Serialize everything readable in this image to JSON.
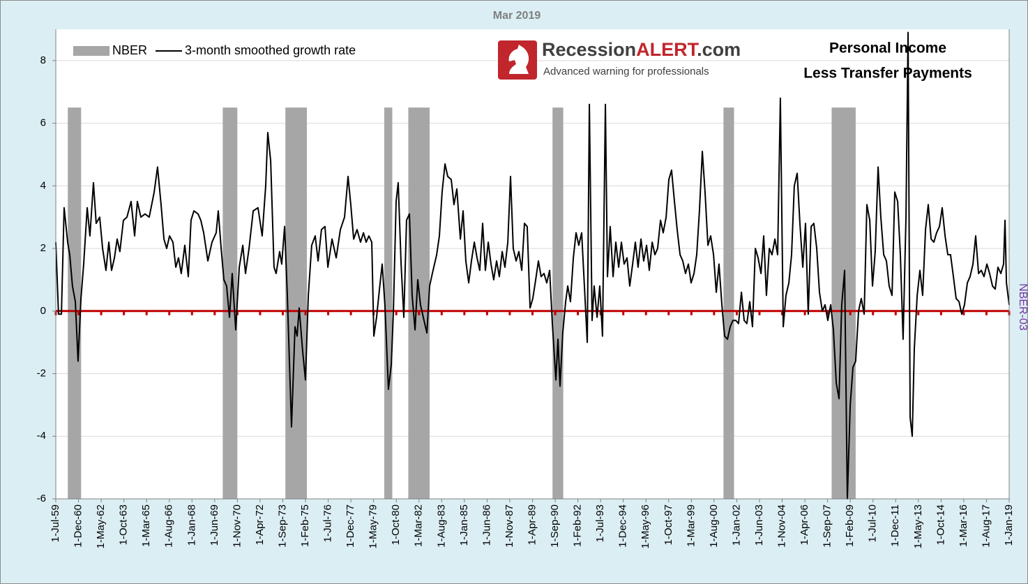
{
  "chart_data": {
    "type": "line",
    "title": "Mar 2019",
    "annotation": [
      "Personal Income",
      "Less Transfer Payments"
    ],
    "logo": {
      "name_parts": [
        "Recession",
        "ALERT",
        ".com"
      ],
      "tagline": "Advanced warning for professionals"
    },
    "y2_label": "NBER-03",
    "legend": "upper left",
    "grid": true,
    "xlim": [
      1959.5,
      2019.0
    ],
    "ylim": [
      -6,
      9
    ],
    "yticks": [
      -6,
      -4,
      -2,
      0,
      2,
      4,
      6,
      8
    ],
    "xticks": [
      {
        "value": 1959.5,
        "label": "1-Jul-59"
      },
      {
        "value": 1960.917,
        "label": "1-Dec-60"
      },
      {
        "value": 1962.333,
        "label": "1-May-62"
      },
      {
        "value": 1963.75,
        "label": "1-Oct-63"
      },
      {
        "value": 1965.167,
        "label": "1-Mar-65"
      },
      {
        "value": 1966.583,
        "label": "1-Aug-66"
      },
      {
        "value": 1968.0,
        "label": "1-Jan-68"
      },
      {
        "value": 1969.417,
        "label": "1-Jun-69"
      },
      {
        "value": 1970.833,
        "label": "1-Nov-70"
      },
      {
        "value": 1972.25,
        "label": "1-Apr-72"
      },
      {
        "value": 1973.667,
        "label": "1-Sep-73"
      },
      {
        "value": 1975.083,
        "label": "1-Feb-75"
      },
      {
        "value": 1976.5,
        "label": "1-Jul-76"
      },
      {
        "value": 1977.917,
        "label": "1-Dec-77"
      },
      {
        "value": 1979.333,
        "label": "1-May-79"
      },
      {
        "value": 1980.75,
        "label": "1-Oct-80"
      },
      {
        "value": 1982.167,
        "label": "1-Mar-82"
      },
      {
        "value": 1983.583,
        "label": "1-Aug-83"
      },
      {
        "value": 1985.0,
        "label": "1-Jan-85"
      },
      {
        "value": 1986.417,
        "label": "1-Jun-86"
      },
      {
        "value": 1987.833,
        "label": "1-Nov-87"
      },
      {
        "value": 1989.25,
        "label": "1-Apr-89"
      },
      {
        "value": 1990.667,
        "label": "1-Sep-90"
      },
      {
        "value": 1992.083,
        "label": "1-Feb-92"
      },
      {
        "value": 1993.5,
        "label": "1-Jul-93"
      },
      {
        "value": 1994.917,
        "label": "1-Dec-94"
      },
      {
        "value": 1996.333,
        "label": "1-May-96"
      },
      {
        "value": 1997.75,
        "label": "1-Oct-97"
      },
      {
        "value": 1999.167,
        "label": "1-Mar-99"
      },
      {
        "value": 2000.583,
        "label": "1-Aug-00"
      },
      {
        "value": 2002.0,
        "label": "1-Jan-02"
      },
      {
        "value": 2003.417,
        "label": "1-Jun-03"
      },
      {
        "value": 2004.833,
        "label": "1-Nov-04"
      },
      {
        "value": 2006.25,
        "label": "1-Apr-06"
      },
      {
        "value": 2007.667,
        "label": "1-Sep-07"
      },
      {
        "value": 2009.083,
        "label": "1-Feb-09"
      },
      {
        "value": 2010.5,
        "label": "1-Jul-10"
      },
      {
        "value": 2011.917,
        "label": "1-Dec-11"
      },
      {
        "value": 2013.333,
        "label": "1-May-13"
      },
      {
        "value": 2014.75,
        "label": "1-Oct-14"
      },
      {
        "value": 2016.167,
        "label": "1-Mar-16"
      },
      {
        "value": 2017.583,
        "label": "1-Aug-17"
      },
      {
        "value": 2019.0,
        "label": "1-Jan-19"
      }
    ],
    "reference_line": {
      "value": 0,
      "color": "#c00000"
    },
    "series": [
      {
        "name": "NBER",
        "type": "band",
        "color": "#a6a6a6",
        "x_start": [
          1960.25,
          1969.92,
          1973.83,
          1980.0,
          1981.5,
          1990.5,
          2001.17,
          2007.92
        ],
        "x_end": [
          1961.08,
          1970.83,
          1975.17,
          1980.5,
          1982.83,
          1991.17,
          2001.83,
          2009.42
        ],
        "values": [
          6.5,
          6.5,
          6.5,
          6.5,
          6.5,
          6.5,
          6.5,
          6.5
        ]
      },
      {
        "name": "3-month smoothed growth rate",
        "type": "line",
        "color": "#000000",
        "x": [
          1959.5,
          1959.67,
          1959.85,
          1960.02,
          1960.24,
          1960.37,
          1960.54,
          1960.72,
          1960.89,
          1961.07,
          1961.24,
          1961.46,
          1961.63,
          1961.85,
          1962.02,
          1962.24,
          1962.42,
          1962.63,
          1962.81,
          1962.98,
          1963.16,
          1963.33,
          1963.5,
          1963.72,
          1963.94,
          1964.2,
          1964.42,
          1964.59,
          1964.81,
          1965.07,
          1965.33,
          1965.64,
          1965.85,
          1966.07,
          1966.25,
          1966.42,
          1966.6,
          1966.81,
          1966.99,
          1967.16,
          1967.33,
          1967.55,
          1967.77,
          1967.94,
          1968.12,
          1968.38,
          1968.55,
          1968.73,
          1968.99,
          1969.25,
          1969.51,
          1969.64,
          1969.82,
          1969.99,
          1970.16,
          1970.34,
          1970.51,
          1970.73,
          1970.95,
          1971.17,
          1971.34,
          1971.56,
          1971.82,
          1972.12,
          1972.38,
          1972.6,
          1972.73,
          1972.91,
          1973.12,
          1973.25,
          1973.47,
          1973.6,
          1973.78,
          1973.95,
          1974.21,
          1974.43,
          1974.56,
          1974.69,
          1974.91,
          1975.08,
          1975.26,
          1975.47,
          1975.69,
          1975.87,
          1976.08,
          1976.3,
          1976.48,
          1976.74,
          1977.0,
          1977.26,
          1977.52,
          1977.74,
          1977.91,
          1978.09,
          1978.3,
          1978.52,
          1978.7,
          1978.87,
          1979.04,
          1979.22,
          1979.35,
          1979.52,
          1979.7,
          1979.87,
          1980.04,
          1980.26,
          1980.44,
          1980.57,
          1980.74,
          1980.87,
          1981.05,
          1981.22,
          1981.39,
          1981.57,
          1981.74,
          1981.92,
          1982.09,
          1982.26,
          1982.48,
          1982.66,
          1982.83,
          1983.0,
          1983.27,
          1983.44,
          1983.61,
          1983.79,
          1983.96,
          1984.18,
          1984.35,
          1984.53,
          1984.75,
          1984.92,
          1985.09,
          1985.27,
          1985.44,
          1985.62,
          1985.79,
          1985.96,
          1986.14,
          1986.31,
          1986.49,
          1986.66,
          1986.83,
          1987.01,
          1987.18,
          1987.36,
          1987.53,
          1987.71,
          1987.88,
          1988.05,
          1988.23,
          1988.4,
          1988.58,
          1988.75,
          1988.92,
          1989.1,
          1989.27,
          1989.45,
          1989.62,
          1989.79,
          1989.97,
          1990.14,
          1990.32,
          1990.49,
          1990.71,
          1990.84,
          1990.97,
          1991.14,
          1991.32,
          1991.45,
          1991.62,
          1991.8,
          1991.97,
          1992.14,
          1992.32,
          1992.49,
          1992.67,
          1992.8,
          1992.97,
          1993.1,
          1993.28,
          1993.45,
          1993.62,
          1993.8,
          1993.93,
          1994.1,
          1994.28,
          1994.45,
          1994.63,
          1994.8,
          1994.97,
          1995.15,
          1995.32,
          1995.5,
          1995.67,
          1995.84,
          1996.02,
          1996.19,
          1996.37,
          1996.54,
          1996.72,
          1996.89,
          1997.06,
          1997.24,
          1997.41,
          1997.59,
          1997.76,
          1997.93,
          1998.11,
          1998.28,
          1998.46,
          1998.63,
          1998.8,
          1998.98,
          1999.15,
          1999.33,
          1999.5,
          1999.67,
          1999.85,
          2000.02,
          2000.2,
          2000.37,
          2000.55,
          2000.72,
          2000.89,
          2001.07,
          2001.24,
          2001.42,
          2001.59,
          2001.76,
          2001.94,
          2002.11,
          2002.29,
          2002.46,
          2002.63,
          2002.81,
          2002.98,
          2003.16,
          2003.33,
          2003.51,
          2003.68,
          2003.85,
          2004.03,
          2004.2,
          2004.38,
          2004.55,
          2004.72,
          2004.9,
          2005.07,
          2005.25,
          2005.42,
          2005.59,
          2005.77,
          2005.94,
          2006.12,
          2006.29,
          2006.46,
          2006.64,
          2006.81,
          2006.99,
          2007.16,
          2007.34,
          2007.51,
          2007.68,
          2007.86,
          2008.03,
          2008.21,
          2008.38,
          2008.55,
          2008.73,
          2008.9,
          2009.08,
          2009.25,
          2009.42,
          2009.6,
          2009.77,
          2009.95,
          2010.12,
          2010.3,
          2010.47,
          2010.64,
          2010.82,
          2010.99,
          2011.17,
          2011.34,
          2011.51,
          2011.69,
          2011.86,
          2012.04,
          2012.21,
          2012.38,
          2012.56,
          2012.69,
          2012.82,
          2012.95,
          2013.08,
          2013.26,
          2013.43,
          2013.6,
          2013.78,
          2013.95,
          2014.13,
          2014.3,
          2014.47,
          2014.65,
          2014.82,
          2015.0,
          2015.17,
          2015.34,
          2015.52,
          2015.69,
          2015.87,
          2016.04,
          2016.21,
          2016.39,
          2016.56,
          2016.74,
          2016.91,
          2017.09,
          2017.26,
          2017.43,
          2017.61,
          2017.78,
          2017.96,
          2018.13,
          2018.3,
          2018.48,
          2018.65,
          2018.74,
          2018.83,
          2019.0
        ],
        "values": [
          2.2,
          -0.1,
          -0.1,
          3.3,
          2.2,
          1.8,
          0.8,
          0.3,
          -1.6,
          0.4,
          1.5,
          3.3,
          2.4,
          4.1,
          2.8,
          3.0,
          2.0,
          1.3,
          2.2,
          1.3,
          1.7,
          2.3,
          1.9,
          2.9,
          3.0,
          3.5,
          2.4,
          3.5,
          3.0,
          3.1,
          3.0,
          3.8,
          4.6,
          3.4,
          2.3,
          2.0,
          2.4,
          2.2,
          1.4,
          1.7,
          1.2,
          2.1,
          1.1,
          2.9,
          3.2,
          3.1,
          2.9,
          2.5,
          1.6,
          2.2,
          2.5,
          3.2,
          2.0,
          1.0,
          0.8,
          -0.2,
          1.2,
          -0.6,
          1.4,
          2.1,
          1.2,
          2.0,
          3.2,
          3.3,
          2.4,
          4.0,
          5.7,
          4.8,
          1.4,
          1.2,
          1.9,
          1.5,
          2.7,
          0.5,
          -3.7,
          -0.5,
          -0.8,
          0.1,
          -1.3,
          -2.2,
          0.5,
          2.1,
          2.4,
          1.6,
          2.6,
          2.7,
          1.4,
          2.3,
          1.7,
          2.6,
          3.0,
          4.3,
          3.4,
          2.3,
          2.6,
          2.2,
          2.5,
          2.2,
          2.4,
          2.2,
          -0.8,
          -0.2,
          0.7,
          1.5,
          0.2,
          -2.5,
          -1.7,
          0.0,
          3.5,
          4.1,
          1.5,
          -0.2,
          2.9,
          3.1,
          0.5,
          -0.6,
          1.0,
          0.2,
          -0.3,
          -0.7,
          0.8,
          1.2,
          1.8,
          2.4,
          3.8,
          4.7,
          4.3,
          4.2,
          3.4,
          3.9,
          2.3,
          3.2,
          1.6,
          0.9,
          1.6,
          2.2,
          1.7,
          1.3,
          2.8,
          1.3,
          2.2,
          1.5,
          1.0,
          1.6,
          1.1,
          1.9,
          1.4,
          2.2,
          4.3,
          2.0,
          1.6,
          1.9,
          1.3,
          2.8,
          2.7,
          0.1,
          0.4,
          1.0,
          1.6,
          1.1,
          1.2,
          0.9,
          1.3,
          -0.4,
          -2.2,
          -0.9,
          -2.4,
          -0.7,
          0.3,
          0.8,
          0.3,
          1.7,
          2.5,
          2.1,
          2.5,
          0.8,
          -1.0,
          6.6,
          -0.3,
          0.8,
          -0.2,
          0.8,
          -0.8,
          6.6,
          1.1,
          2.7,
          1.1,
          2.2,
          1.4,
          2.2,
          1.5,
          1.7,
          0.8,
          1.5,
          2.2,
          1.4,
          2.3,
          1.6,
          2.1,
          1.3,
          2.2,
          1.8,
          2.0,
          2.9,
          2.5,
          3.0,
          4.2,
          4.5,
          3.5,
          2.6,
          1.8,
          1.6,
          1.2,
          1.5,
          0.9,
          1.2,
          1.8,
          3.2,
          5.1,
          3.8,
          2.1,
          2.4,
          1.8,
          0.6,
          1.5,
          0.2,
          -0.8,
          -0.9,
          -0.5,
          -0.3,
          -0.3,
          -0.4,
          0.6,
          -0.3,
          -0.4,
          0.3,
          -0.5,
          2.0,
          1.7,
          1.2,
          2.4,
          0.5,
          2.0,
          1.8,
          2.3,
          1.8,
          6.8,
          -0.5,
          0.5,
          0.9,
          1.8,
          4.0,
          4.4,
          2.8,
          1.4,
          2.8,
          -0.1,
          2.7,
          2.8,
          2.0,
          0.6,
          0.0,
          0.2,
          -0.3,
          0.2,
          -0.6,
          -2.3,
          -2.8,
          0.2,
          1.3,
          -6.0,
          -3.0,
          -1.8,
          -1.6,
          0.0,
          0.4,
          -0.1,
          3.4,
          2.9,
          0.8,
          1.9,
          4.6,
          3.0,
          1.8,
          1.6,
          0.8,
          0.5,
          3.8,
          3.5,
          1.8,
          -0.9,
          3.0,
          8.9,
          -3.4,
          -4.0,
          -1.2,
          0.5,
          1.3,
          0.5,
          2.6,
          3.4,
          2.3,
          2.2,
          2.5,
          2.7,
          3.3,
          2.4,
          1.8,
          1.8,
          1.1,
          0.4,
          0.3,
          -0.1,
          0.2,
          0.9,
          1.1,
          1.5,
          2.4,
          1.2,
          1.3,
          1.1,
          1.5,
          1.2,
          0.8,
          0.7,
          1.4,
          1.2,
          1.5,
          2.9,
          0.9,
          0.2
        ]
      }
    ]
  }
}
